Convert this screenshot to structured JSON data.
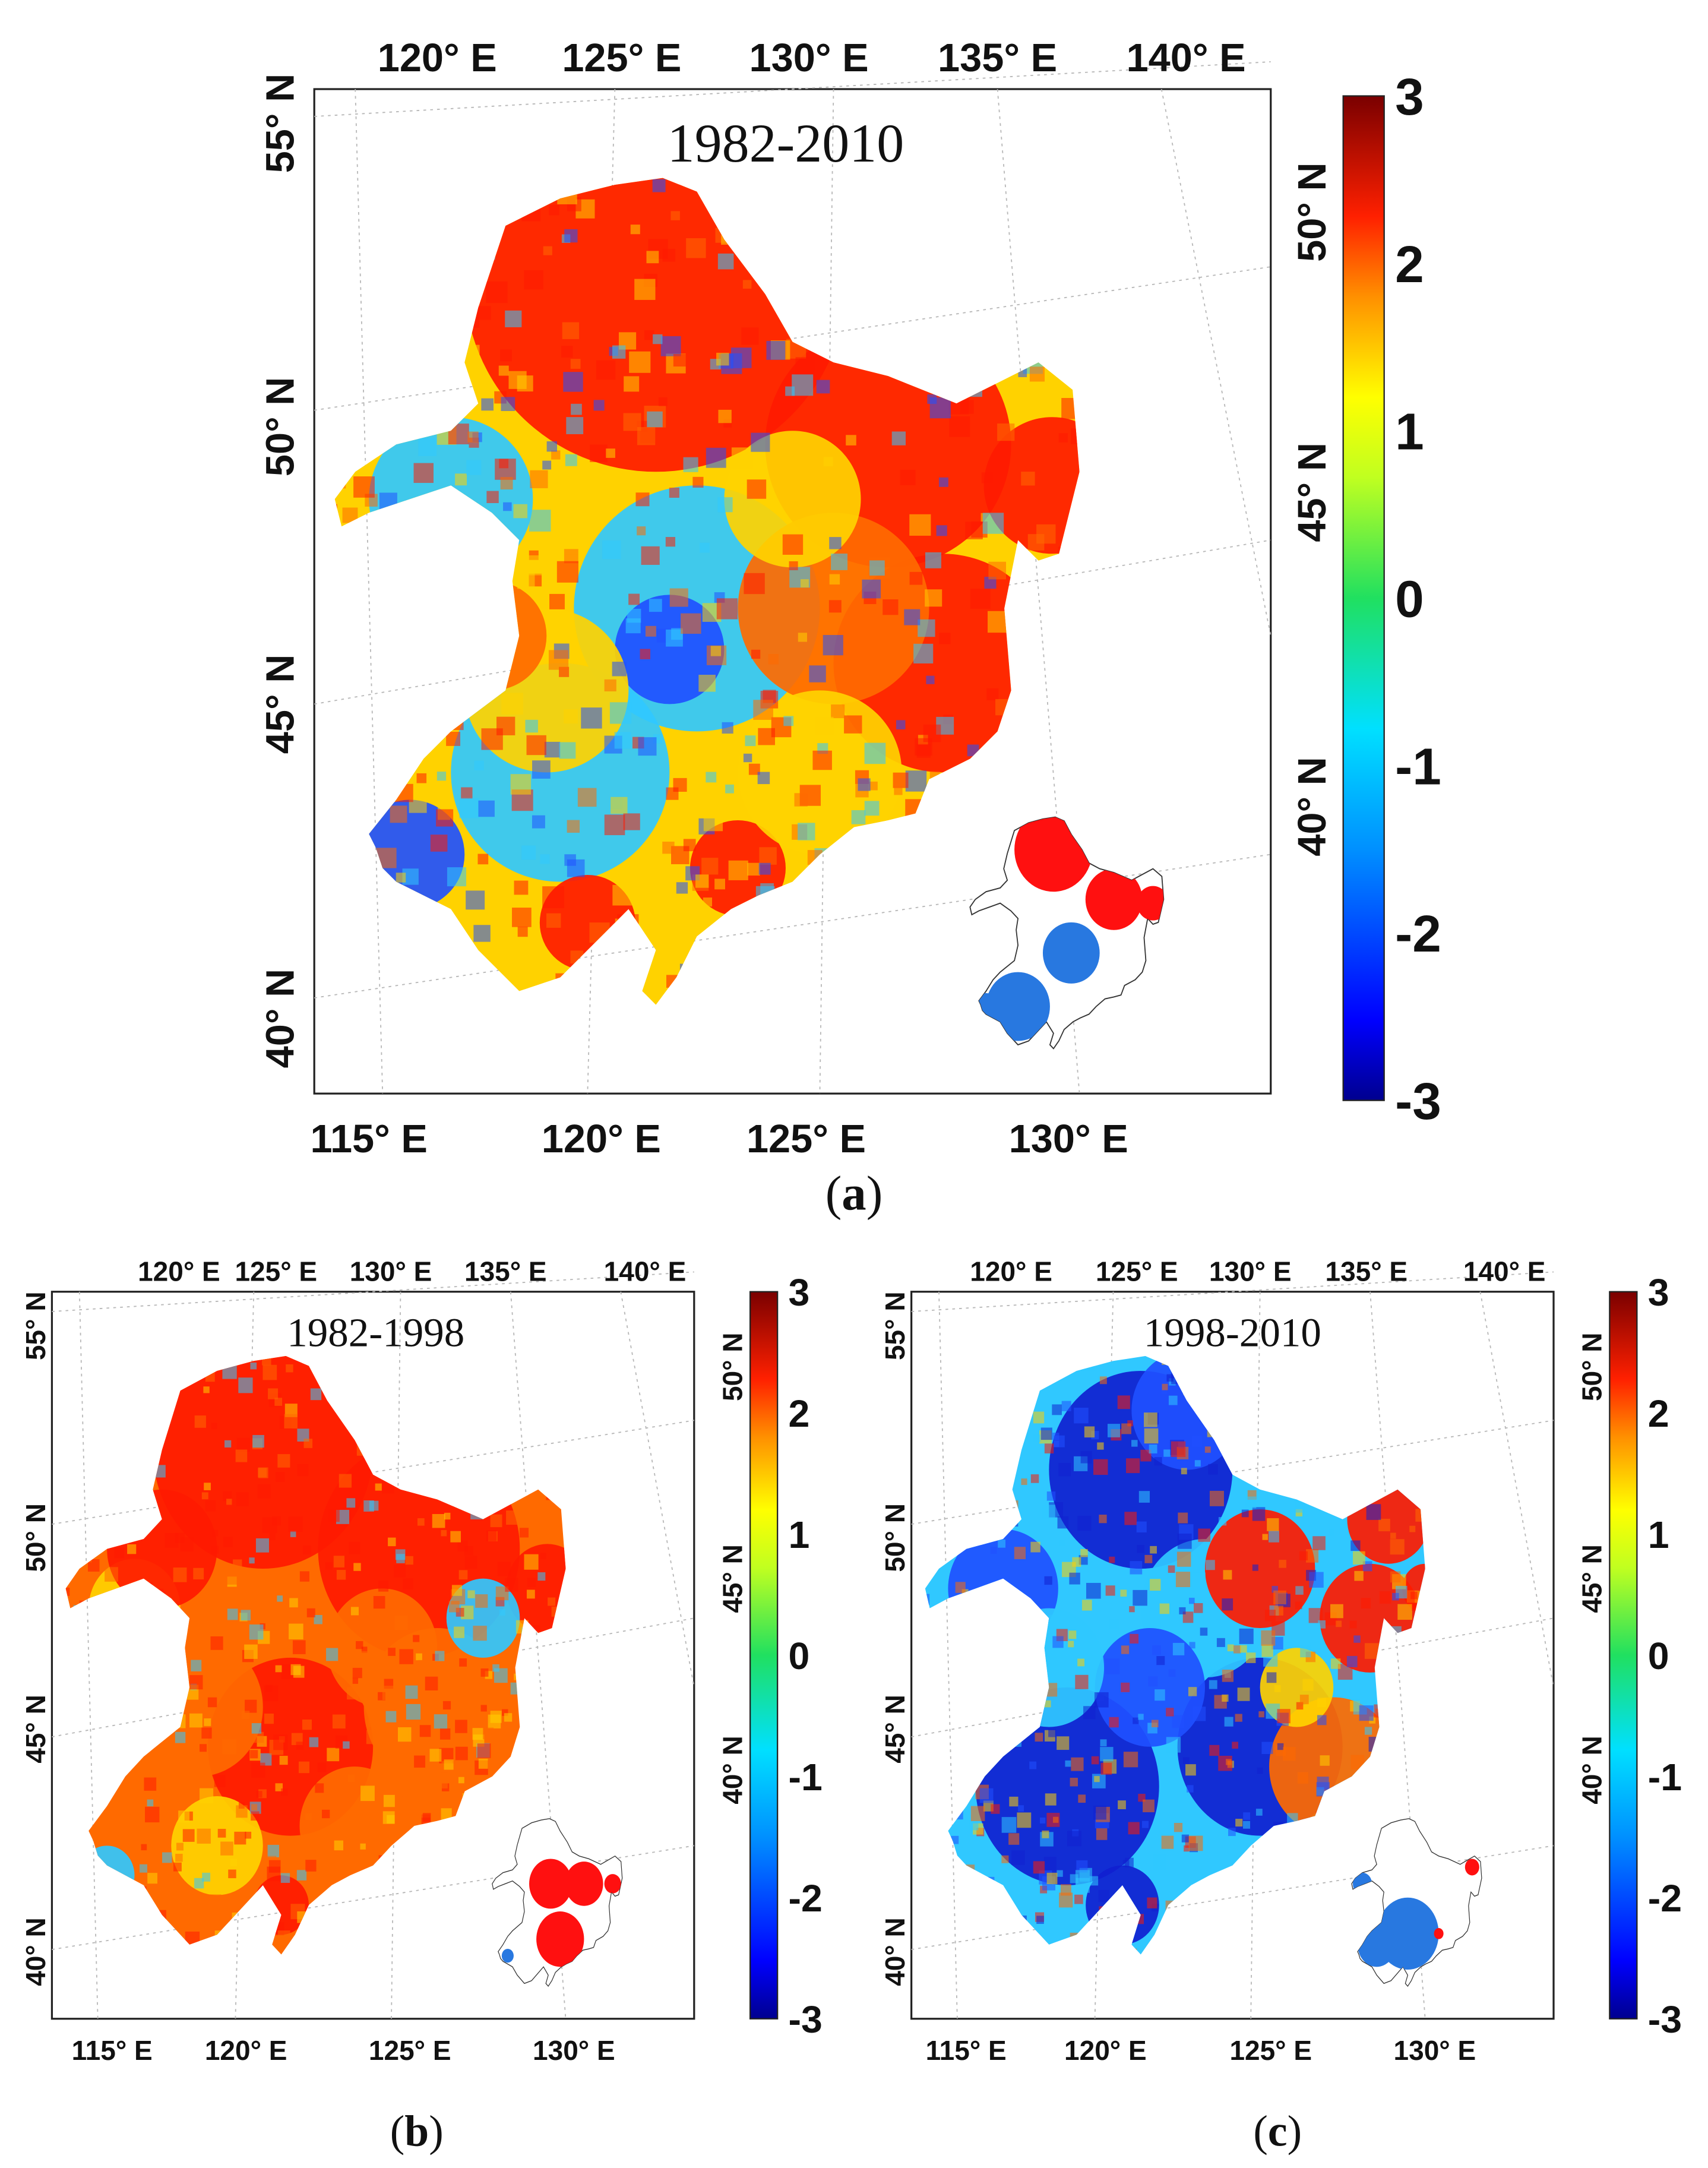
{
  "colors": {
    "scale": [
      "#00008f",
      "#0000ff",
      "#0060ff",
      "#00b0ff",
      "#00ffe0",
      "#40ff80",
      "#b0ff30",
      "#ffff00",
      "#ffb000",
      "#ff6000",
      "#ff0000",
      "#b00000",
      "#800000"
    ],
    "red": "#ff1a00",
    "orange": "#ff6a00",
    "yellow": "#ffd200",
    "cyan": "#30c8ff",
    "blue": "#2050ff",
    "darkblue": "#1020d0",
    "inset_red": "#ff1010",
    "inset_blue": "#2878e0"
  },
  "panels": [
    {
      "id": "a",
      "period": "1982-2010",
      "caption_letter": "a",
      "top_labels": [
        "120° E",
        "125° E",
        "130° E",
        "135° E",
        "140° E"
      ],
      "bottom_labels": [
        "115° E",
        "120° E",
        "125° E",
        "130° E"
      ],
      "left_labels": [
        "55° N",
        "50° N",
        "45° N",
        "40° N"
      ],
      "right_labels": [
        "50° N",
        "45° N",
        "40° N"
      ],
      "colorbar_ticks": [
        "3",
        "2",
        "1",
        "0",
        "-1",
        "-2",
        "-3"
      ],
      "dominant_pattern": "mixed"
    },
    {
      "id": "b",
      "period": "1982-1998",
      "caption_letter": "b",
      "top_labels": [
        "120° E",
        "125° E",
        "130° E",
        "135° E",
        "140° E"
      ],
      "bottom_labels": [
        "115° E",
        "120° E",
        "125° E",
        "130° E"
      ],
      "left_labels": [
        "55° N",
        "50° N",
        "45° N",
        "40° N"
      ],
      "right_labels": [
        "50° N",
        "45° N",
        "40° N"
      ],
      "colorbar_ticks": [
        "3",
        "2",
        "1",
        "0",
        "-1",
        "-2",
        "-3"
      ],
      "dominant_pattern": "positive"
    },
    {
      "id": "c",
      "period": "1998-2010",
      "caption_letter": "c",
      "top_labels": [
        "120° E",
        "125° E",
        "130° E",
        "135° E",
        "140° E"
      ],
      "bottom_labels": [
        "115° E",
        "120° E",
        "125° E",
        "130° E"
      ],
      "left_labels": [
        "55° N",
        "50° N",
        "45° N",
        "40° N"
      ],
      "right_labels": [
        "50° N",
        "45° N",
        "40° N"
      ],
      "colorbar_ticks": [
        "3",
        "2",
        "1",
        "0",
        "-1",
        "-2",
        "-3"
      ],
      "dominant_pattern": "negative"
    }
  ]
}
